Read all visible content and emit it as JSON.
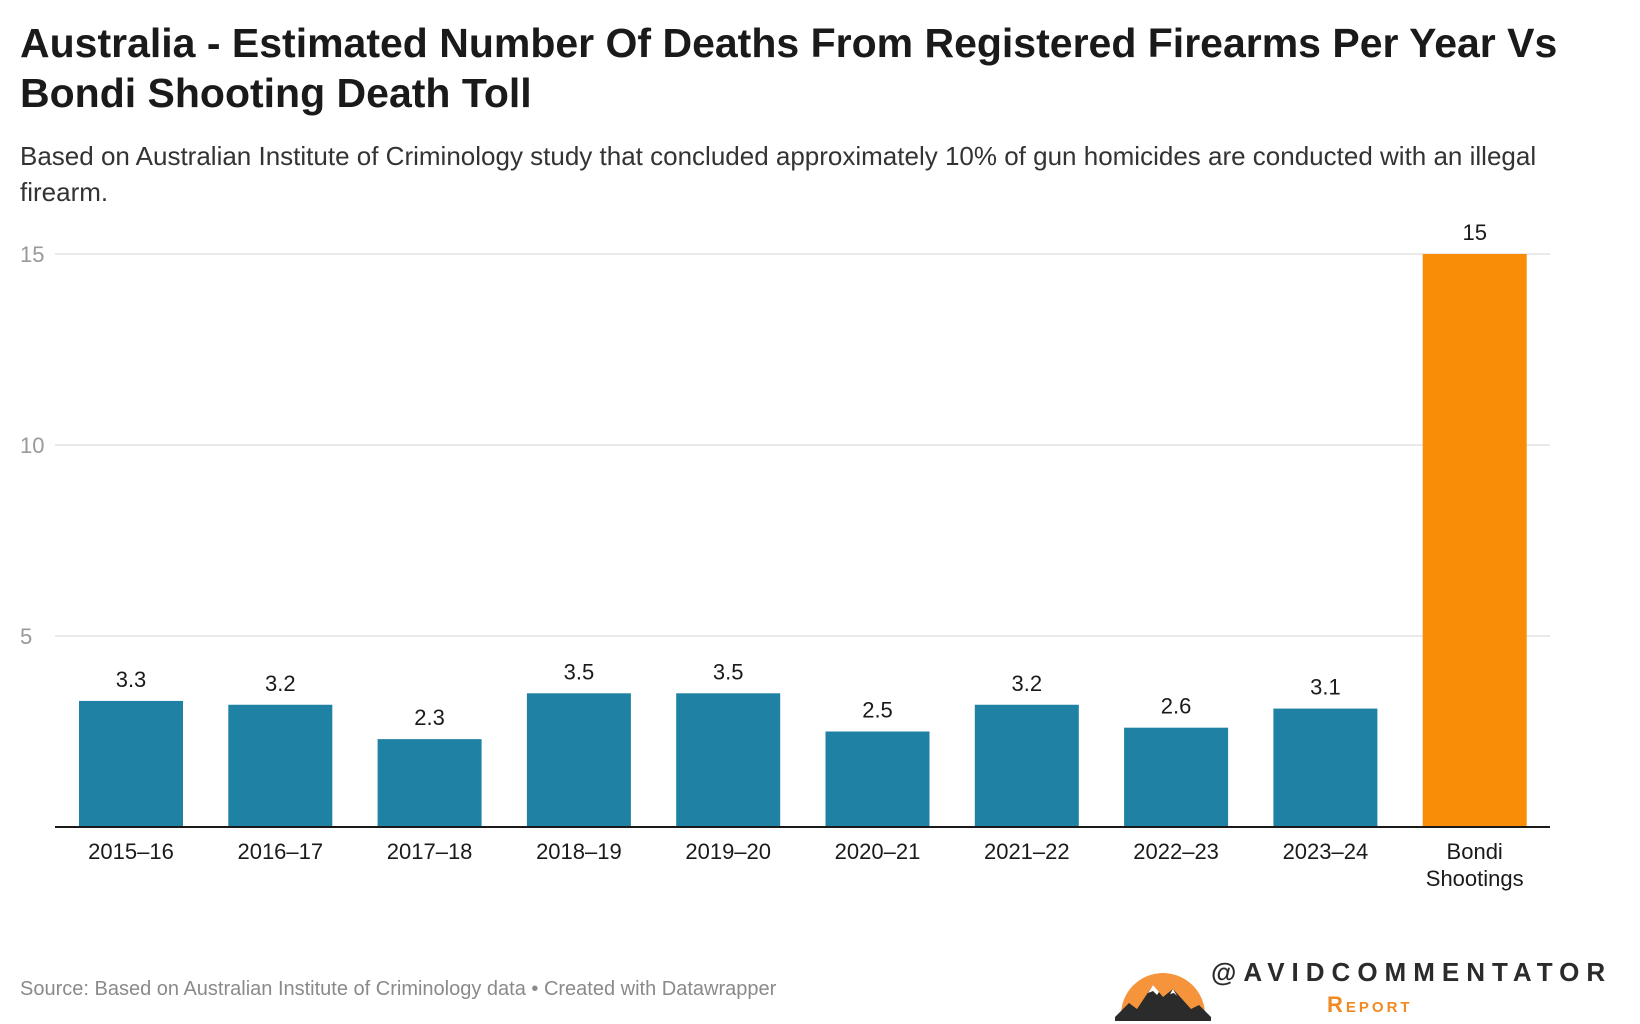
{
  "title": "Australia - Estimated Number Of Deaths From Registered Firearms Per Year Vs Bondi Shooting Death Toll",
  "subtitle": "Based on Australian Institute of Criminology study that concluded approximately 10% of gun homicides are conducted with an illegal firearm.",
  "footer": {
    "source": "Source: Based on Australian Institute of Criminology data • Created with Datawrapper"
  },
  "branding": {
    "handle": "@AVIDCOMMENTATOR",
    "report": "Report",
    "logo_icon": "mountain-sun-logo"
  },
  "colors": {
    "bar": "#1f81a3",
    "highlight": "#f98d08",
    "grid": "#e2e2e2",
    "axis": "#1a1a1a"
  },
  "chart_data": {
    "type": "bar",
    "categories": [
      "2015–16",
      "2016–17",
      "2017–18",
      "2018–19",
      "2019–20",
      "2020–21",
      "2021–22",
      "2022–23",
      "2023–24",
      "Bondi Shootings"
    ],
    "values": [
      3.3,
      3.2,
      2.3,
      3.5,
      3.5,
      2.5,
      3.2,
      2.6,
      3.1,
      15
    ],
    "value_labels": [
      "3.3",
      "3.2",
      "2.3",
      "3.5",
      "3.5",
      "2.5",
      "3.2",
      "2.6",
      "3.1",
      "15"
    ],
    "highlight_index": 9,
    "ylim": [
      0,
      15
    ],
    "yticks": [
      5,
      10,
      15
    ],
    "grid": true,
    "xlabel": "",
    "ylabel": ""
  }
}
